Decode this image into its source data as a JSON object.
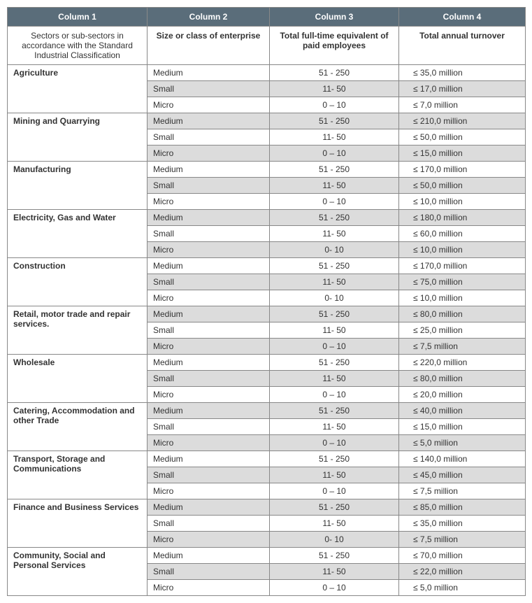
{
  "header_bg": "#5a6d7a",
  "header_fg": "#ffffff",
  "border_color": "#888888",
  "shade_color": "#dcdcdc",
  "white_color": "#ffffff",
  "text_color": "#333333",
  "font_family": "Arial, sans-serif",
  "font_size_pt": 12,
  "columns": {
    "h1": "Column 1",
    "h2": "Column 2",
    "h3": "Column 3",
    "h4": "Column 4",
    "sub1": "Sectors or sub-sectors in accordance with the Standard Industrial Classification",
    "sub2": "Size or class of enterprise",
    "sub3": "Total full-time equivalent of paid employees",
    "sub4": "Total annual turnover"
  },
  "sectors": [
    {
      "name": "Agriculture",
      "rows": [
        {
          "size": "Medium",
          "emp": "51 - 250",
          "turn": "≤ 35,0 million",
          "shade": false
        },
        {
          "size": "Small",
          "emp": "11- 50",
          "turn": "≤ 17,0 million",
          "shade": true
        },
        {
          "size": "Micro",
          "emp": "0 – 10",
          "turn": "≤ 7,0 million",
          "shade": false
        }
      ]
    },
    {
      "name": "Mining and Quarrying",
      "rows": [
        {
          "size": "Medium",
          "emp": "51 - 250",
          "turn": "≤ 210,0 million",
          "shade": true
        },
        {
          "size": "Small",
          "emp": "11- 50",
          "turn": "≤ 50,0 million",
          "shade": false
        },
        {
          "size": "Micro",
          "emp": "0 – 10",
          "turn": "≤ 15,0 million",
          "shade": true
        }
      ]
    },
    {
      "name": "Manufacturing",
      "rows": [
        {
          "size": "Medium",
          "emp": "51 - 250",
          "turn": "≤ 170,0 million",
          "shade": false
        },
        {
          "size": "Small",
          "emp": "11- 50",
          "turn": "≤  50,0 million",
          "shade": true
        },
        {
          "size": "Micro",
          "emp": "0 – 10",
          "turn": "≤  10,0 million",
          "shade": false
        }
      ]
    },
    {
      "name": "Electricity, Gas and Water",
      "rows": [
        {
          "size": "Medium",
          "emp": "51 - 250",
          "turn": "≤ 180,0 million",
          "shade": true
        },
        {
          "size": "Small",
          "emp": "11- 50",
          "turn": "≤ 60,0 million",
          "shade": false
        },
        {
          "size": "Micro",
          "emp": "0- 10",
          "turn": "≤ 10,0 million",
          "shade": true
        }
      ]
    },
    {
      "name": "Construction",
      "rows": [
        {
          "size": "Medium",
          "emp": "51 - 250",
          "turn": "≤ 170,0 million",
          "shade": false
        },
        {
          "size": "Small",
          "emp": "11- 50",
          "turn": "≤ 75,0 million",
          "shade": true
        },
        {
          "size": "Micro",
          "emp": "0- 10",
          "turn": "≤ 10,0 million",
          "shade": false
        }
      ]
    },
    {
      "name": "Retail, motor trade and repair services.",
      "rows": [
        {
          "size": "Medium",
          "emp": "51 - 250",
          "turn": "≤ 80,0 million",
          "shade": true
        },
        {
          "size": "Small",
          "emp": "11- 50",
          "turn": "≤ 25,0 million",
          "shade": false
        },
        {
          "size": "Micro",
          "emp": "0 – 10",
          "turn": "≤ 7,5 million",
          "shade": true
        }
      ]
    },
    {
      "name": "Wholesale",
      "rows": [
        {
          "size": "Medium",
          "emp": "51 - 250",
          "turn": "≤ 220,0 million",
          "shade": false
        },
        {
          "size": "Small",
          "emp": "11- 50",
          "turn": "≤ 80,0 million",
          "shade": true
        },
        {
          "size": "Micro",
          "emp": "0 – 10",
          "turn": "≤ 20,0 million",
          "shade": false
        }
      ]
    },
    {
      "name": "Catering, Accommodation and other Trade",
      "rows": [
        {
          "size": "Medium",
          "emp": "51 - 250",
          "turn": "≤ 40,0 million",
          "shade": true
        },
        {
          "size": "Small",
          "emp": "11- 50",
          "turn": "≤ 15,0 million",
          "shade": false
        },
        {
          "size": "Micro",
          "emp": "0 – 10",
          "turn": "≤ 5,0 million",
          "shade": true
        }
      ]
    },
    {
      "name": "Transport, Storage and Communications",
      "rows": [
        {
          "size": "Medium",
          "emp": "51 - 250",
          "turn": "≤ 140,0 million",
          "shade": false
        },
        {
          "size": "Small",
          "emp": "11- 50",
          "turn": "≤ 45,0 million",
          "shade": true
        },
        {
          "size": "Micro",
          "emp": "0 – 10",
          "turn": "≤ 7,5 million",
          "shade": false
        }
      ]
    },
    {
      "name": "Finance and Business Services",
      "rows": [
        {
          "size": "Medium",
          "emp": "51 - 250",
          "turn": "≤ 85,0 million",
          "shade": true
        },
        {
          "size": "Small",
          "emp": "11- 50",
          "turn": "≤ 35,0 million",
          "shade": false
        },
        {
          "size": "Micro",
          "emp": "0- 10",
          "turn": "≤ 7,5 million",
          "shade": true
        }
      ]
    },
    {
      "name": "Community, Social and Personal Services",
      "rows": [
        {
          "size": "Medium",
          "emp": "51 - 250",
          "turn": "≤ 70,0 million",
          "shade": false
        },
        {
          "size": "Small",
          "emp": "11- 50",
          "turn": "≤ 22,0 million",
          "shade": true
        },
        {
          "size": "Micro",
          "emp": "0 – 10",
          "turn": "≤ 5,0 million",
          "shade": false
        }
      ]
    }
  ]
}
